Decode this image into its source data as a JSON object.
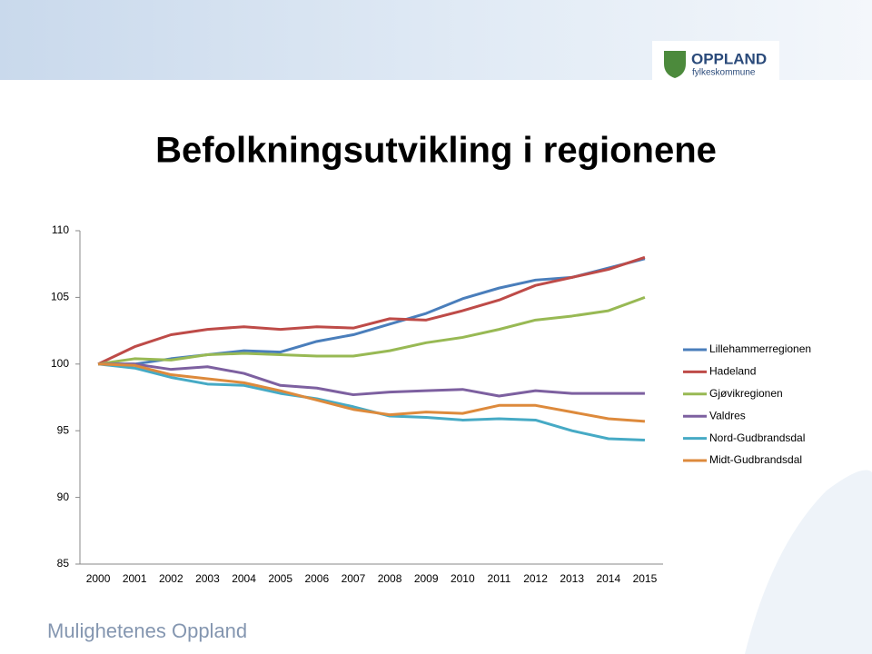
{
  "header": {
    "logo_name": "OPPLAND",
    "logo_sub": "fylkeskommune"
  },
  "footer": "Mulighetenes Oppland",
  "chart_data": {
    "type": "line",
    "title": "Befolkningsutvikling i regionene",
    "categories": [
      "2000",
      "2001",
      "2002",
      "2003",
      "2004",
      "2005",
      "2006",
      "2007",
      "2008",
      "2009",
      "2010",
      "2011",
      "2012",
      "2013",
      "2014",
      "2015"
    ],
    "ylim": [
      85,
      110
    ],
    "yticks": [
      85,
      90,
      95,
      100,
      105,
      110
    ],
    "grid": false,
    "legend": "right",
    "series": [
      {
        "name": "Lillehammerregionen",
        "color": "#4a7ebb",
        "values": [
          100,
          100,
          100.4,
          100.7,
          101.0,
          100.9,
          101.7,
          102.2,
          103.0,
          103.8,
          104.9,
          105.7,
          106.3,
          106.5,
          107.2,
          107.9
        ]
      },
      {
        "name": "Hadeland",
        "color": "#be4b48",
        "values": [
          100,
          101.3,
          102.2,
          102.6,
          102.8,
          102.6,
          102.8,
          102.7,
          103.4,
          103.3,
          104.0,
          104.8,
          105.9,
          106.5,
          107.1,
          108.0
        ]
      },
      {
        "name": "Gjøvikregionen",
        "color": "#98b954",
        "values": [
          100,
          100.4,
          100.3,
          100.7,
          100.8,
          100.7,
          100.6,
          100.6,
          101.0,
          101.6,
          102.0,
          102.6,
          103.3,
          103.6,
          104.0,
          105.0
        ]
      },
      {
        "name": "Valdres",
        "color": "#7d60a0",
        "values": [
          100,
          100.0,
          99.6,
          99.8,
          99.3,
          98.4,
          98.2,
          97.7,
          97.9,
          98.0,
          98.1,
          97.6,
          98.0,
          97.8,
          97.8,
          97.8
        ]
      },
      {
        "name": "Nord-Gudbrandsdal",
        "color": "#46aac5",
        "values": [
          100,
          99.7,
          99.0,
          98.5,
          98.4,
          97.8,
          97.4,
          96.8,
          96.1,
          96.0,
          95.8,
          95.9,
          95.8,
          95.0,
          94.4,
          94.3
        ]
      },
      {
        "name": "Midt-Gudbrandsdal",
        "color": "#dd8a3c",
        "values": [
          100,
          99.9,
          99.2,
          98.9,
          98.6,
          98.0,
          97.3,
          96.6,
          96.2,
          96.4,
          96.3,
          96.9,
          96.9,
          96.4,
          95.9,
          95.7
        ]
      }
    ]
  }
}
